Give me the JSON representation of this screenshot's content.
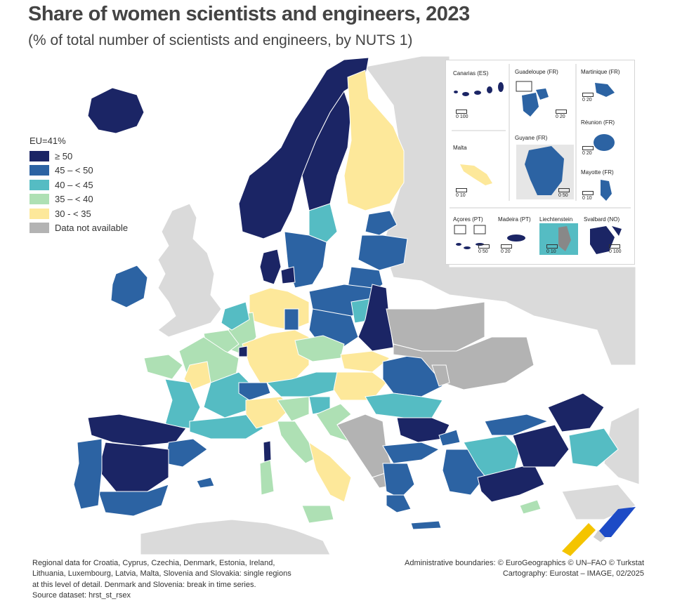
{
  "title": "Share of women scientists and engineers, 2023",
  "subtitle": "(% of total number of scientists and engineers, by NUTS 1)",
  "legend": {
    "title": "EU=41%",
    "classes": [
      {
        "label": "≥ 50",
        "color": "#1b2565"
      },
      {
        "label": "45 – < 50",
        "color": "#2c63a3"
      },
      {
        "label": "40 – < 45",
        "color": "#55bcc3"
      },
      {
        "label": "35 – < 40",
        "color": "#aee0b4"
      },
      {
        "label": "30 - < 35",
        "color": "#fde89a"
      },
      {
        "label": "Data not available",
        "color": "#b3b3b3"
      }
    ]
  },
  "colors": {
    "sea": "#ffffff",
    "non_eu_land": "#dadada",
    "border": "#ffffff"
  },
  "insets": [
    {
      "name": "Canarias (ES)",
      "scale": "0   100"
    },
    {
      "name": "Guadeloupe (FR)",
      "scale": "0   20"
    },
    {
      "name": "Martinique (FR)",
      "scale": "0   20"
    },
    {
      "name": "Réunion (FR)",
      "scale": "0   20"
    },
    {
      "name": "Malta",
      "scale": "0   10"
    },
    {
      "name": "Guyane (FR)",
      "scale": "0   50"
    },
    {
      "name": "Mayotte (FR)",
      "scale": "0   10"
    },
    {
      "name": "Açores (PT)",
      "scale": "0   50"
    },
    {
      "name": "Madeira (PT)",
      "scale": "0   20"
    },
    {
      "name": "Liechtenstein",
      "scale": "0   10"
    },
    {
      "name": "Svalbard (NO)",
      "scale": "0   100"
    }
  ],
  "footnote": {
    "line1": "Regional data for Croatia, Cyprus, Czechia, Denmark, Estonia, Ireland,",
    "line2": "Lithuania, Luxembourg, Latvia, Malta, Slovenia and Slovakia: single regions",
    "line3": "at this level of detail. Denmark and Slovenia: break in time series.",
    "line4": "Source dataset: hrst_st_rsex"
  },
  "credits": {
    "line1": "Administrative boundaries: © EuroGeographics © UN–FAO © Turkstat",
    "line2": "Cartography: Eurostat – IMAGE, 02/2025"
  }
}
